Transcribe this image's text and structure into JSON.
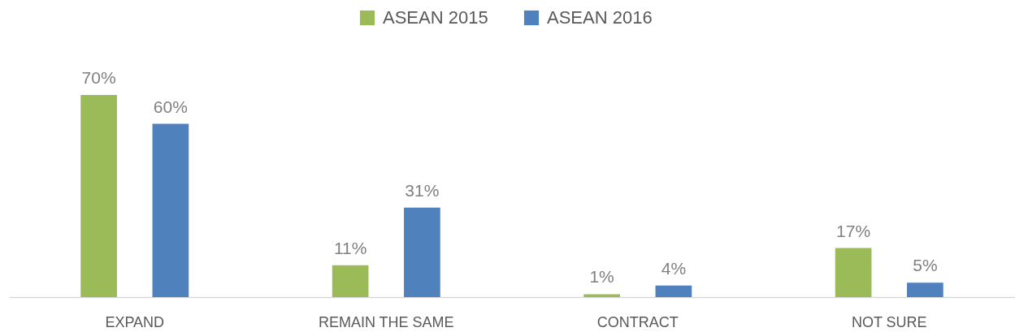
{
  "chart_data": {
    "type": "bar",
    "categories": [
      "EXPAND",
      "REMAIN THE SAME",
      "CONTRACT",
      "NOT SURE"
    ],
    "series": [
      {
        "name": "ASEAN 2015",
        "color": "#9bbb59",
        "values": [
          70,
          11,
          1,
          17
        ],
        "value_labels": [
          "70%",
          "11%",
          "1%",
          "17%"
        ]
      },
      {
        "name": "ASEAN 2016",
        "color": "#4f81bd",
        "values": [
          60,
          31,
          4,
          5
        ],
        "value_labels": [
          "60%",
          "31%",
          "4%",
          "5%"
        ]
      }
    ],
    "legend": "top"
  }
}
